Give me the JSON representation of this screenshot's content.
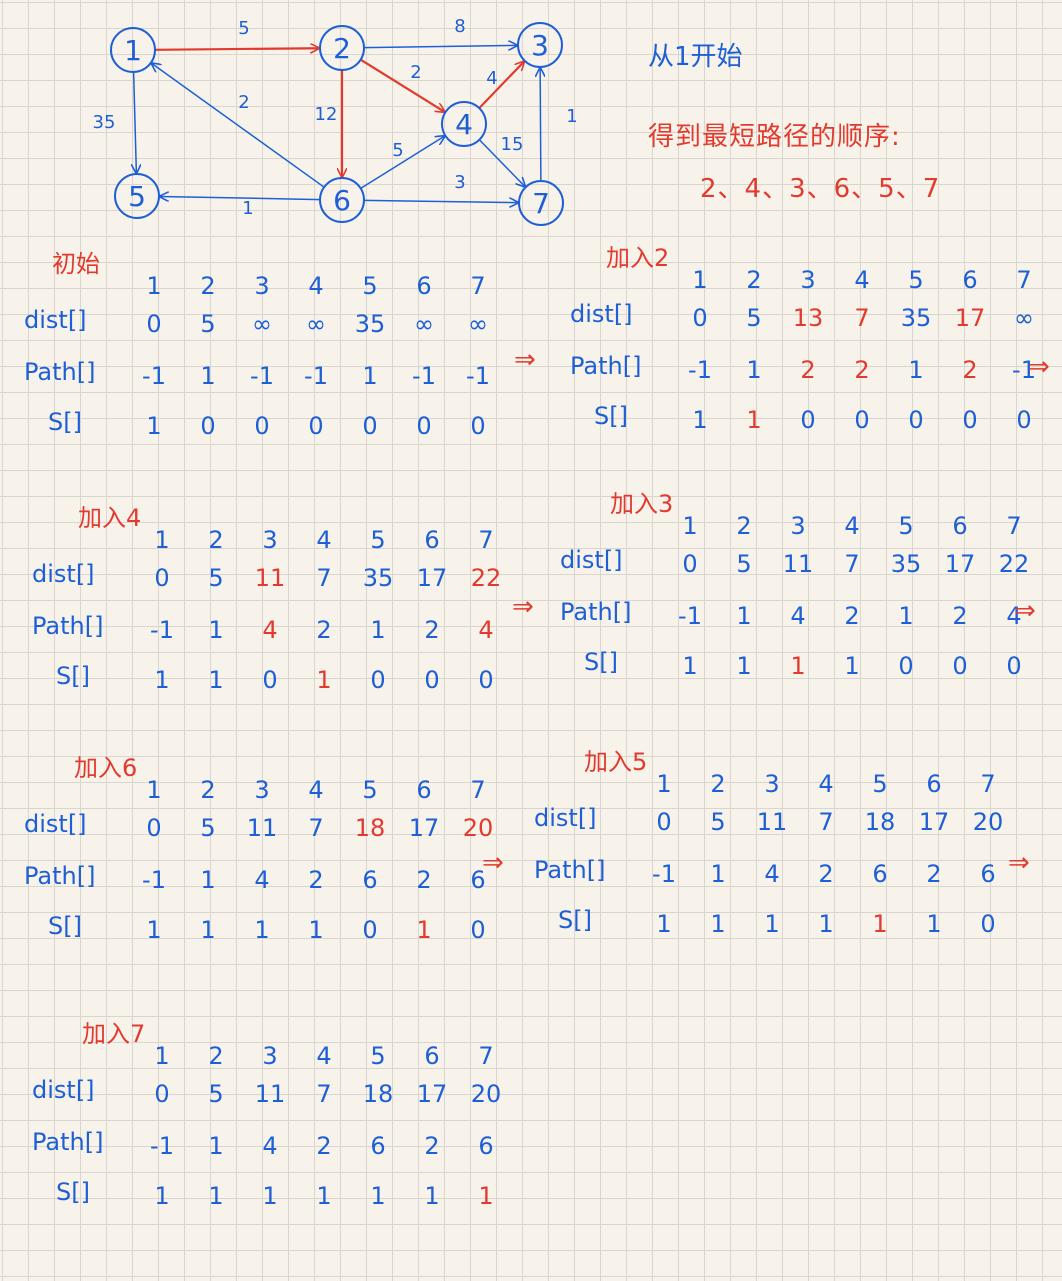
{
  "notes": {
    "start": "从1开始",
    "order_title": "得到最短路径的顺序:",
    "order": "2、4、3、6、5、7"
  },
  "colors": {
    "blue": "#1e5fd6",
    "red": "#e23a2e"
  },
  "graph": {
    "nodes": [
      "1",
      "2",
      "3",
      "4",
      "5",
      "6",
      "7"
    ],
    "edges": [
      {
        "from": "1",
        "to": "2",
        "weight": "5",
        "highlight": true
      },
      {
        "from": "2",
        "to": "3",
        "weight": "8",
        "highlight": false
      },
      {
        "from": "2",
        "to": "4",
        "weight": "2",
        "highlight": true
      },
      {
        "from": "4",
        "to": "3",
        "weight": "4",
        "highlight": true
      },
      {
        "from": "6",
        "to": "1",
        "weight": "2",
        "highlight": false
      },
      {
        "from": "2",
        "to": "6",
        "weight": "12",
        "highlight": true
      },
      {
        "from": "1",
        "to": "5",
        "weight": "35",
        "highlight": false
      },
      {
        "from": "6",
        "to": "4",
        "weight": "5",
        "highlight": false
      },
      {
        "from": "4",
        "to": "7",
        "weight": "15",
        "highlight": false
      },
      {
        "from": "6",
        "to": "5",
        "weight": "1",
        "highlight": false
      },
      {
        "from": "6",
        "to": "7",
        "weight": "3",
        "highlight": false
      },
      {
        "from": "7",
        "to": "3",
        "weight": "1",
        "highlight": false
      }
    ]
  },
  "row_labels": {
    "dist": "dist[]",
    "path": "Path[]",
    "s": "S[]"
  },
  "columns": [
    "1",
    "2",
    "3",
    "4",
    "5",
    "6",
    "7"
  ],
  "arrow_symbol": "⇒",
  "steps": [
    {
      "title": "初始",
      "dist": [
        "0",
        "5",
        "∞",
        "∞",
        "35",
        "∞",
        "∞"
      ],
      "path": [
        "-1",
        "1",
        "-1",
        "-1",
        "1",
        "-1",
        "-1"
      ],
      "s": [
        "1",
        "0",
        "0",
        "0",
        "0",
        "0",
        "0"
      ],
      "red": {
        "dist": [],
        "path": [],
        "s": []
      }
    },
    {
      "title": "加入2",
      "dist": [
        "0",
        "5",
        "13",
        "7",
        "35",
        "17",
        "∞"
      ],
      "path": [
        "-1",
        "1",
        "2",
        "2",
        "1",
        "2",
        "-1"
      ],
      "s": [
        "1",
        "1",
        "0",
        "0",
        "0",
        "0",
        "0"
      ],
      "red": {
        "dist": [
          2,
          3,
          5
        ],
        "path": [
          2,
          3,
          5
        ],
        "s": [
          1
        ]
      }
    },
    {
      "title": "加入4",
      "dist": [
        "0",
        "5",
        "11",
        "7",
        "35",
        "17",
        "22"
      ],
      "path": [
        "-1",
        "1",
        "4",
        "2",
        "1",
        "2",
        "4"
      ],
      "s": [
        "1",
        "1",
        "0",
        "1",
        "0",
        "0",
        "0"
      ],
      "red": {
        "dist": [
          2,
          6
        ],
        "path": [
          2,
          6
        ],
        "s": [
          3
        ]
      }
    },
    {
      "title": "加入3",
      "dist": [
        "0",
        "5",
        "11",
        "7",
        "35",
        "17",
        "22"
      ],
      "path": [
        "-1",
        "1",
        "4",
        "2",
        "1",
        "2",
        "4"
      ],
      "s": [
        "1",
        "1",
        "1",
        "1",
        "0",
        "0",
        "0"
      ],
      "red": {
        "dist": [],
        "path": [],
        "s": [
          2
        ]
      }
    },
    {
      "title": "加入6",
      "dist": [
        "0",
        "5",
        "11",
        "7",
        "18",
        "17",
        "20"
      ],
      "path": [
        "-1",
        "1",
        "4",
        "2",
        "6",
        "2",
        "6"
      ],
      "s": [
        "1",
        "1",
        "1",
        "1",
        "0",
        "1",
        "0"
      ],
      "red": {
        "dist": [
          4,
          6
        ],
        "path": [],
        "s": [
          5
        ]
      }
    },
    {
      "title": "加入5",
      "dist": [
        "0",
        "5",
        "11",
        "7",
        "18",
        "17",
        "20"
      ],
      "path": [
        "-1",
        "1",
        "4",
        "2",
        "6",
        "2",
        "6"
      ],
      "s": [
        "1",
        "1",
        "1",
        "1",
        "1",
        "1",
        "0"
      ],
      "red": {
        "dist": [],
        "path": [],
        "s": [
          4
        ]
      }
    },
    {
      "title": "加入7",
      "dist": [
        "0",
        "5",
        "11",
        "7",
        "18",
        "17",
        "20"
      ],
      "path": [
        "-1",
        "1",
        "4",
        "2",
        "6",
        "2",
        "6"
      ],
      "s": [
        "1",
        "1",
        "1",
        "1",
        "1",
        "1",
        "1"
      ],
      "red": {
        "dist": [],
        "path": [],
        "s": [
          6
        ]
      }
    }
  ]
}
